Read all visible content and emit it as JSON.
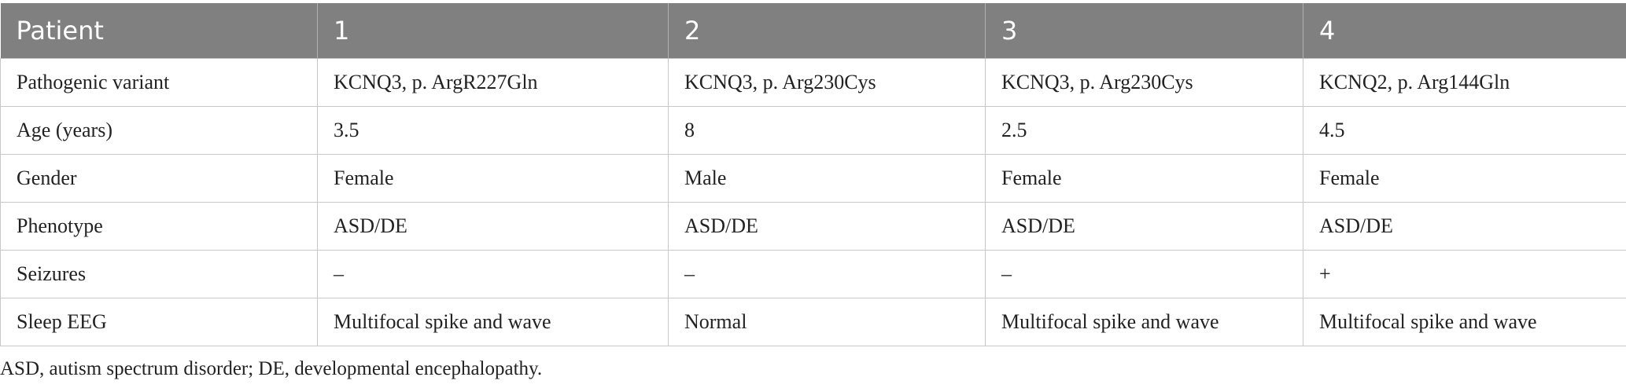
{
  "table": {
    "header": [
      "Patient",
      "1",
      "2",
      "3",
      "4"
    ],
    "rows": [
      [
        "Pathogenic variant",
        "KCNQ3, p. ArgR227Gln",
        "KCNQ3, p. Arg230Cys",
        "KCNQ3, p. Arg230Cys",
        "KCNQ2, p. Arg144Gln"
      ],
      [
        "Age (years)",
        "3.5",
        "8",
        "2.5",
        "4.5"
      ],
      [
        "Gender",
        "Female",
        "Male",
        "Female",
        "Female"
      ],
      [
        "Phenotype",
        "ASD/DE",
        "ASD/DE",
        "ASD/DE",
        "ASD/DE"
      ],
      [
        "Seizures",
        "–",
        "–",
        "–",
        "+"
      ],
      [
        "Sleep EEG",
        "Multifocal spike and wave",
        "Normal",
        "Multifocal spike and wave",
        "Multifocal spike and wave"
      ]
    ]
  },
  "footnote": "ASD, autism spectrum disorder; DE, developmental encephalopathy."
}
